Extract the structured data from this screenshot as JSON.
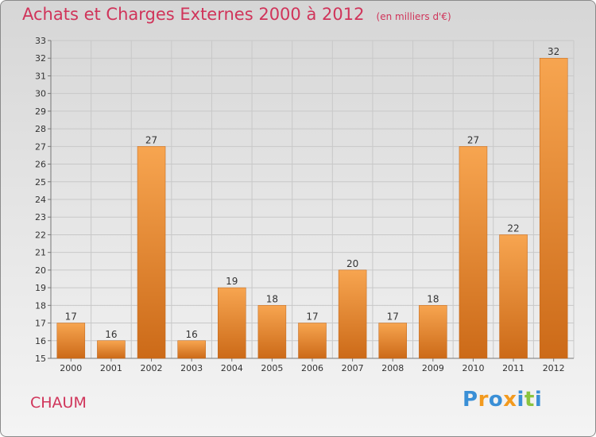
{
  "header": {
    "title": "Achats et Charges Externes 2000 à 2012",
    "unit": "(en milliers d'€)"
  },
  "footer": {
    "commune": "CHAUM",
    "logo_letters": [
      {
        "ch": "P",
        "color": "#3a8fd6"
      },
      {
        "ch": "r",
        "color": "#f39a1e"
      },
      {
        "ch": "o",
        "color": "#3a8fd6"
      },
      {
        "ch": "x",
        "color": "#f39a1e"
      },
      {
        "ch": "i",
        "color": "#3a8fd6"
      },
      {
        "ch": "t",
        "color": "#8ac43f"
      },
      {
        "ch": "i",
        "color": "#3a8fd6"
      }
    ]
  },
  "colors": {
    "title": "#d0345a",
    "bar_top": "#f7a550",
    "bar_bottom": "#cc6a18",
    "grid": "#c8c8c8"
  },
  "chart_data": {
    "type": "bar",
    "title": "Achats et Charges Externes 2000 à 2012",
    "subtitle": "(en milliers d'€)",
    "categories": [
      "2000",
      "2001",
      "2002",
      "2003",
      "2004",
      "2005",
      "2006",
      "2007",
      "2008",
      "2009",
      "2010",
      "2011",
      "2012"
    ],
    "values": [
      17,
      16,
      27,
      16,
      19,
      18,
      17,
      20,
      17,
      18,
      27,
      22,
      32
    ],
    "ylim": [
      15,
      33
    ],
    "yticks": [
      15,
      16,
      17,
      18,
      19,
      20,
      21,
      22,
      23,
      24,
      25,
      26,
      27,
      28,
      29,
      30,
      31,
      32,
      33
    ],
    "grid": true,
    "xlabel": "",
    "ylabel": ""
  }
}
